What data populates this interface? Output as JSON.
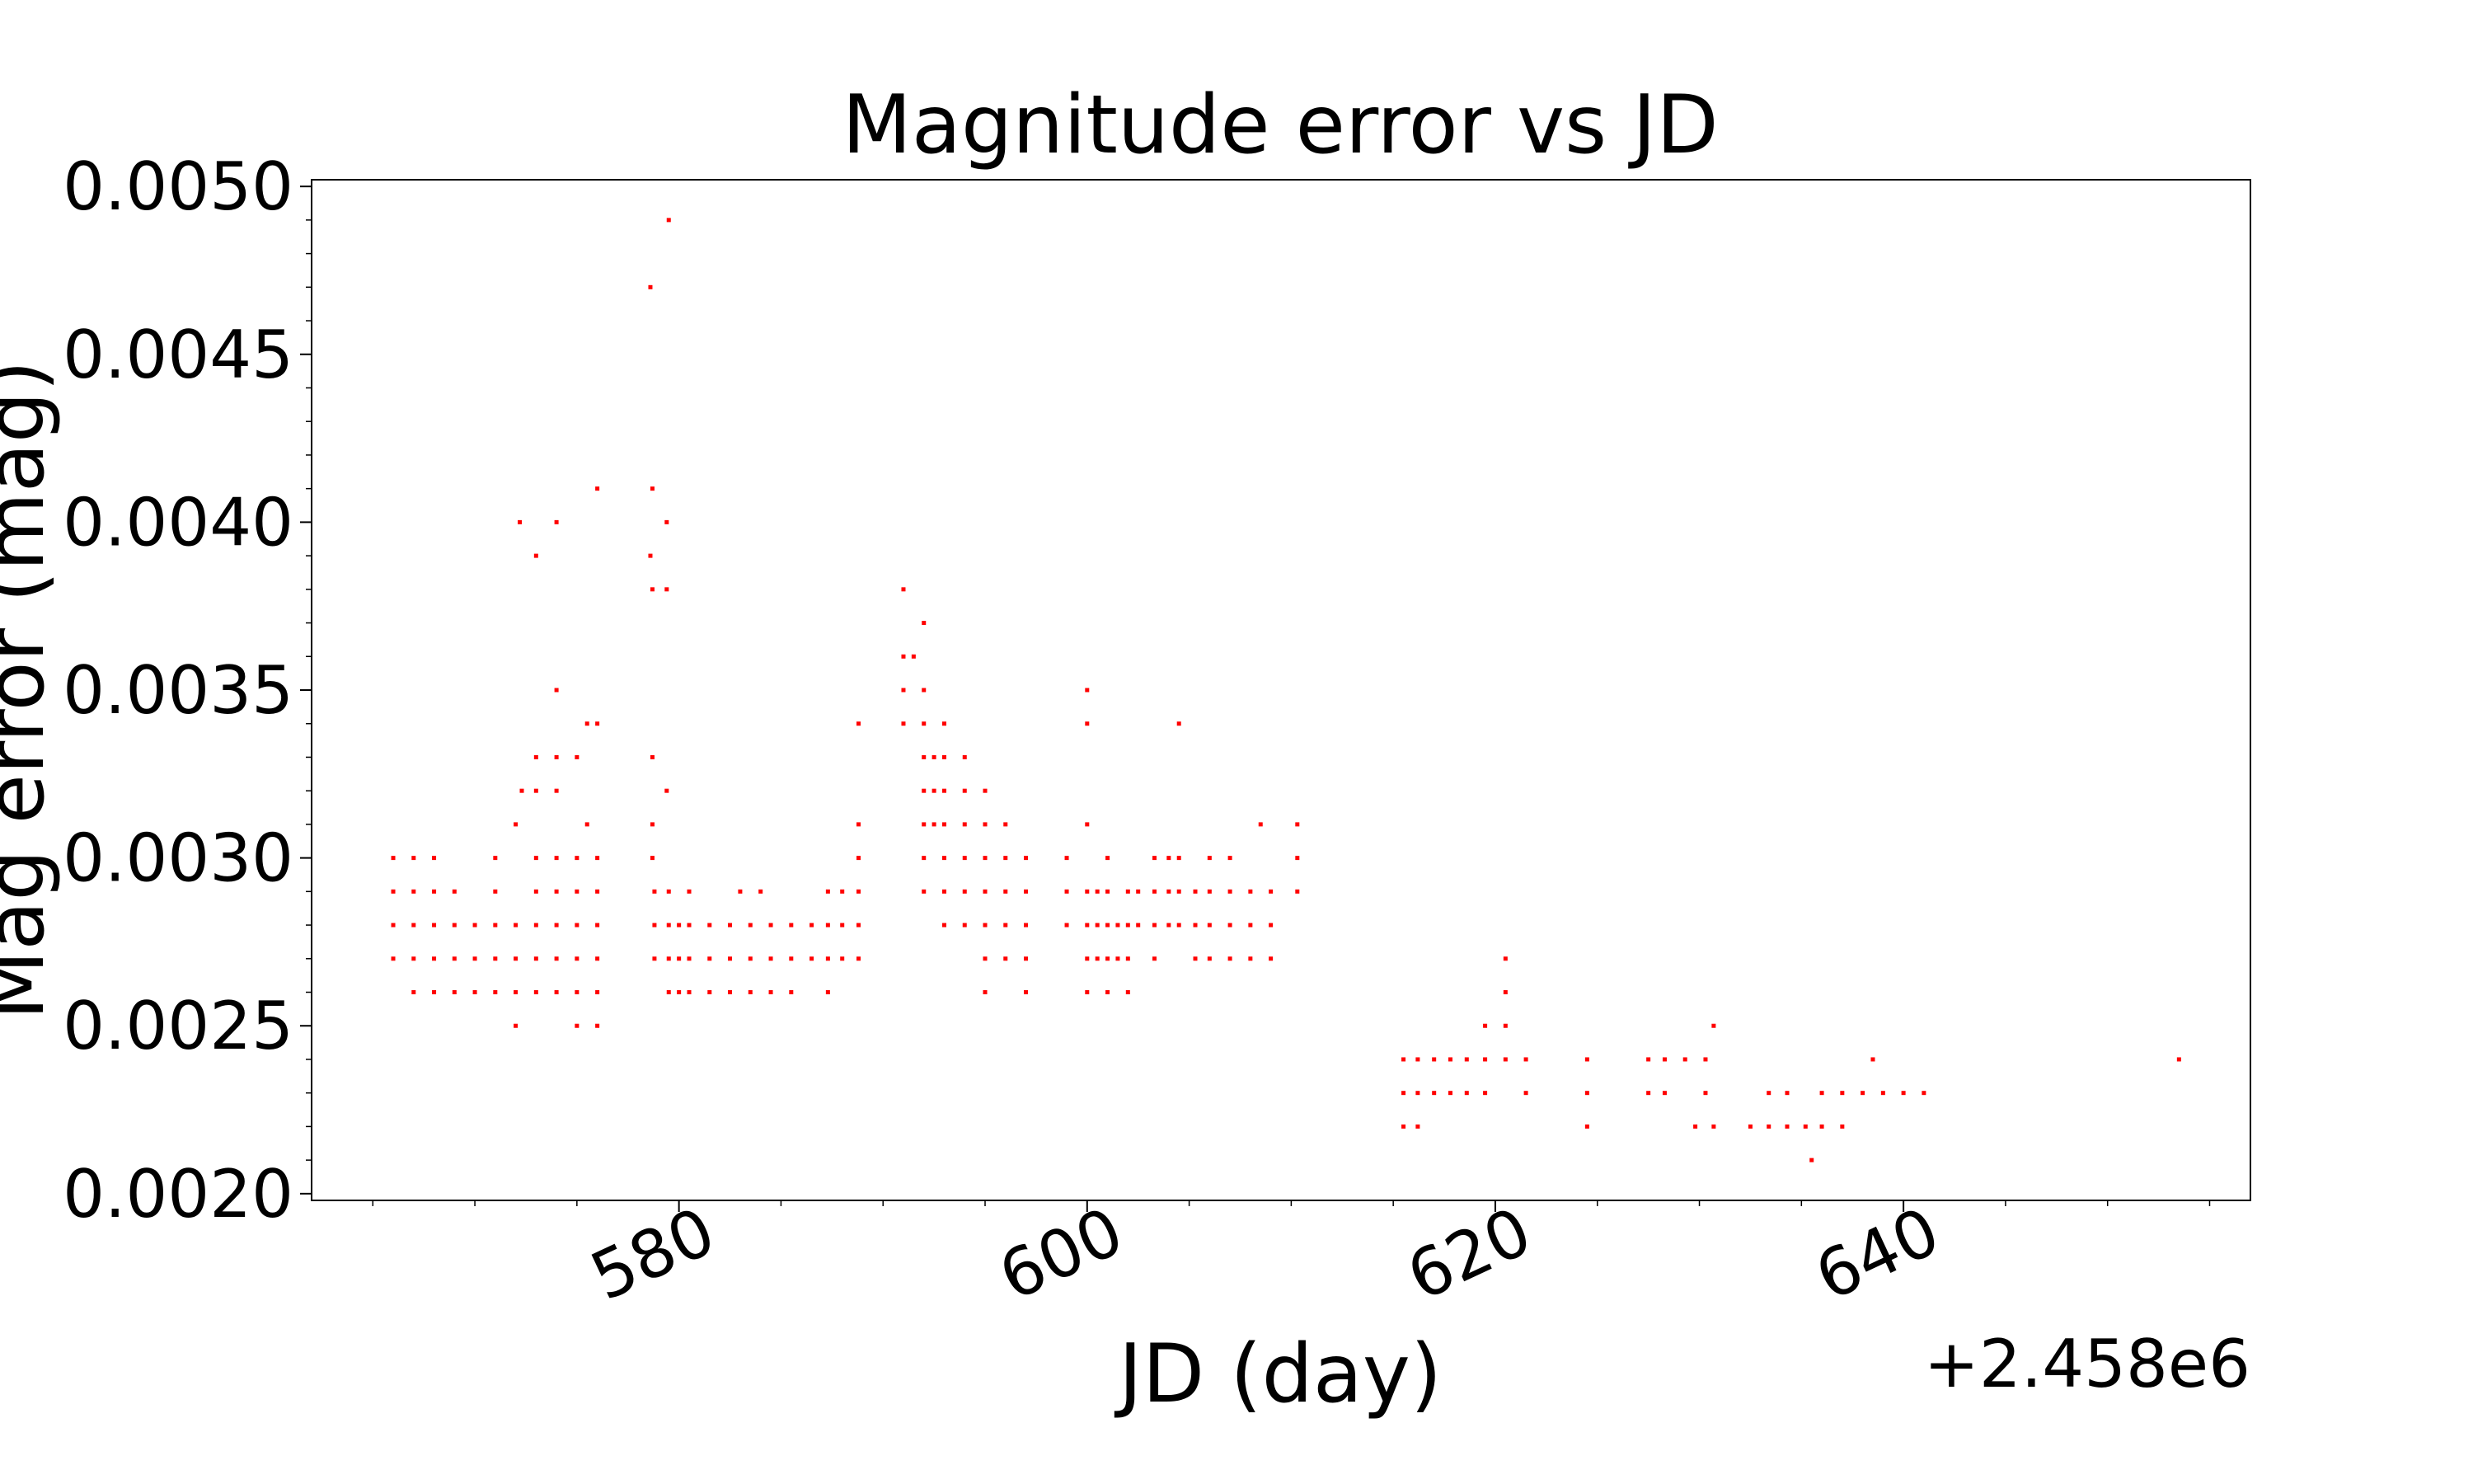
{
  "chart_data": {
    "type": "scatter",
    "title": "Magnitude error vs JD",
    "xlabel": "JD (day)",
    "ylabel": "Mag error (mag)",
    "x_offset_label": "+2.458e6",
    "xlim": [
      2458562,
      2458657
    ],
    "ylim": [
      0.00198,
      0.00502
    ],
    "x_ticks": [
      2458580,
      2458600,
      2458620,
      2458640
    ],
    "x_tick_labels": [
      "580",
      "600",
      "620",
      "640"
    ],
    "y_ticks": [
      0.002,
      0.0025,
      0.003,
      0.0035,
      0.004,
      0.0045,
      0.005
    ],
    "y_tick_labels": [
      "0.0020",
      "0.0025",
      "0.0030",
      "0.0035",
      "0.0040",
      "0.0045",
      "0.0050"
    ],
    "grid": false,
    "marker_color": "#ff0000",
    "series": [
      {
        "points": [
          [
            2458566.0,
            0.003
          ],
          [
            2458566.0,
            0.0029
          ],
          [
            2458566.0,
            0.0028
          ],
          [
            2458566.0,
            0.0027
          ],
          [
            2458567.0,
            0.003
          ],
          [
            2458567.0,
            0.0029
          ],
          [
            2458567.0,
            0.0028
          ],
          [
            2458567.0,
            0.0027
          ],
          [
            2458567.0,
            0.0026
          ],
          [
            2458568.0,
            0.003
          ],
          [
            2458568.0,
            0.0029
          ],
          [
            2458568.0,
            0.0028
          ],
          [
            2458568.0,
            0.0027
          ],
          [
            2458568.0,
            0.0026
          ],
          [
            2458569.0,
            0.0029
          ],
          [
            2458569.0,
            0.0028
          ],
          [
            2458569.0,
            0.0027
          ],
          [
            2458569.0,
            0.0026
          ],
          [
            2458570.0,
            0.0028
          ],
          [
            2458570.0,
            0.0027
          ],
          [
            2458570.0,
            0.0026
          ],
          [
            2458571.0,
            0.003
          ],
          [
            2458571.0,
            0.0029
          ],
          [
            2458571.0,
            0.0028
          ],
          [
            2458571.0,
            0.0027
          ],
          [
            2458571.0,
            0.0026
          ],
          [
            2458572.0,
            0.0031
          ],
          [
            2458572.0,
            0.0028
          ],
          [
            2458572.0,
            0.0027
          ],
          [
            2458572.0,
            0.0026
          ],
          [
            2458572.0,
            0.0025
          ],
          [
            2458572.2,
            0.004
          ],
          [
            2458572.3,
            0.0032
          ],
          [
            2458573.0,
            0.0039
          ],
          [
            2458573.0,
            0.0033
          ],
          [
            2458573.0,
            0.0032
          ],
          [
            2458573.0,
            0.003
          ],
          [
            2458573.0,
            0.0029
          ],
          [
            2458573.0,
            0.0028
          ],
          [
            2458573.0,
            0.0027
          ],
          [
            2458573.0,
            0.0026
          ],
          [
            2458574.0,
            0.004
          ],
          [
            2458574.0,
            0.0035
          ],
          [
            2458574.0,
            0.0033
          ],
          [
            2458574.0,
            0.0032
          ],
          [
            2458574.0,
            0.003
          ],
          [
            2458574.0,
            0.0029
          ],
          [
            2458574.0,
            0.0028
          ],
          [
            2458574.0,
            0.0027
          ],
          [
            2458574.0,
            0.0026
          ],
          [
            2458575.0,
            0.0033
          ],
          [
            2458575.0,
            0.003
          ],
          [
            2458575.0,
            0.0029
          ],
          [
            2458575.0,
            0.0028
          ],
          [
            2458575.0,
            0.0027
          ],
          [
            2458575.0,
            0.0026
          ],
          [
            2458575.0,
            0.0025
          ],
          [
            2458575.5,
            0.0034
          ],
          [
            2458575.5,
            0.0031
          ],
          [
            2458576.0,
            0.0041
          ],
          [
            2458576.0,
            0.0034
          ],
          [
            2458576.0,
            0.003
          ],
          [
            2458576.0,
            0.0029
          ],
          [
            2458576.0,
            0.0028
          ],
          [
            2458576.0,
            0.0027
          ],
          [
            2458576.0,
            0.0026
          ],
          [
            2458576.0,
            0.0025
          ],
          [
            2458578.6,
            0.0047
          ],
          [
            2458578.7,
            0.0041
          ],
          [
            2458578.6,
            0.0039
          ],
          [
            2458578.7,
            0.0038
          ],
          [
            2458578.7,
            0.0033
          ],
          [
            2458578.7,
            0.0031
          ],
          [
            2458578.7,
            0.003
          ],
          [
            2458578.8,
            0.0029
          ],
          [
            2458578.8,
            0.0028
          ],
          [
            2458578.8,
            0.0027
          ],
          [
            2458579.5,
            0.0049
          ],
          [
            2458579.4,
            0.004
          ],
          [
            2458579.4,
            0.0038
          ],
          [
            2458579.4,
            0.0032
          ],
          [
            2458579.5,
            0.0029
          ],
          [
            2458579.5,
            0.0028
          ],
          [
            2458579.5,
            0.0027
          ],
          [
            2458579.5,
            0.0026
          ],
          [
            2458580.0,
            0.0028
          ],
          [
            2458580.0,
            0.0027
          ],
          [
            2458580.0,
            0.0026
          ],
          [
            2458580.5,
            0.0029
          ],
          [
            2458580.5,
            0.0028
          ],
          [
            2458580.5,
            0.0027
          ],
          [
            2458580.5,
            0.0026
          ],
          [
            2458581.5,
            0.0028
          ],
          [
            2458581.5,
            0.0027
          ],
          [
            2458581.5,
            0.0026
          ],
          [
            2458582.5,
            0.0028
          ],
          [
            2458582.5,
            0.0027
          ],
          [
            2458582.5,
            0.0026
          ],
          [
            2458583.0,
            0.0029
          ],
          [
            2458583.5,
            0.0028
          ],
          [
            2458583.5,
            0.0027
          ],
          [
            2458583.5,
            0.0026
          ],
          [
            2458584.0,
            0.0029
          ],
          [
            2458584.5,
            0.0028
          ],
          [
            2458584.5,
            0.0027
          ],
          [
            2458584.5,
            0.0026
          ],
          [
            2458585.5,
            0.0028
          ],
          [
            2458585.5,
            0.0027
          ],
          [
            2458585.5,
            0.0026
          ],
          [
            2458586.5,
            0.0028
          ],
          [
            2458586.5,
            0.0027
          ],
          [
            2458587.3,
            0.0029
          ],
          [
            2458587.3,
            0.0028
          ],
          [
            2458587.3,
            0.0027
          ],
          [
            2458587.3,
            0.0026
          ],
          [
            2458588.0,
            0.0029
          ],
          [
            2458588.0,
            0.0028
          ],
          [
            2458588.0,
            0.0027
          ],
          [
            2458588.8,
            0.0034
          ],
          [
            2458588.8,
            0.0031
          ],
          [
            2458588.8,
            0.003
          ],
          [
            2458588.8,
            0.0029
          ],
          [
            2458588.8,
            0.0028
          ],
          [
            2458588.8,
            0.0027
          ],
          [
            2458591.0,
            0.0038
          ],
          [
            2458591.0,
            0.0036
          ],
          [
            2458591.0,
            0.0035
          ],
          [
            2458591.0,
            0.0034
          ],
          [
            2458591.5,
            0.0036
          ],
          [
            2458592.0,
            0.0037
          ],
          [
            2458592.0,
            0.0035
          ],
          [
            2458592.0,
            0.0034
          ],
          [
            2458592.0,
            0.0033
          ],
          [
            2458592.0,
            0.0032
          ],
          [
            2458592.0,
            0.0031
          ],
          [
            2458592.0,
            0.003
          ],
          [
            2458592.0,
            0.0029
          ],
          [
            2458592.5,
            0.0033
          ],
          [
            2458592.5,
            0.0032
          ],
          [
            2458592.5,
            0.0031
          ],
          [
            2458593.0,
            0.0034
          ],
          [
            2458593.0,
            0.0033
          ],
          [
            2458593.0,
            0.0032
          ],
          [
            2458593.0,
            0.0031
          ],
          [
            2458593.0,
            0.003
          ],
          [
            2458593.0,
            0.0029
          ],
          [
            2458593.0,
            0.0028
          ],
          [
            2458594.0,
            0.0033
          ],
          [
            2458594.0,
            0.0032
          ],
          [
            2458594.0,
            0.0031
          ],
          [
            2458594.0,
            0.003
          ],
          [
            2458594.0,
            0.0029
          ],
          [
            2458594.0,
            0.0028
          ],
          [
            2458595.0,
            0.0032
          ],
          [
            2458595.0,
            0.0031
          ],
          [
            2458595.0,
            0.003
          ],
          [
            2458595.0,
            0.0029
          ],
          [
            2458595.0,
            0.0028
          ],
          [
            2458595.0,
            0.0027
          ],
          [
            2458595.0,
            0.0026
          ],
          [
            2458596.0,
            0.0031
          ],
          [
            2458596.0,
            0.003
          ],
          [
            2458596.0,
            0.0029
          ],
          [
            2458596.0,
            0.0028
          ],
          [
            2458596.0,
            0.0027
          ],
          [
            2458597.0,
            0.003
          ],
          [
            2458597.0,
            0.0029
          ],
          [
            2458597.0,
            0.0028
          ],
          [
            2458597.0,
            0.0027
          ],
          [
            2458597.0,
            0.0026
          ],
          [
            2458599.0,
            0.003
          ],
          [
            2458599.0,
            0.0029
          ],
          [
            2458599.0,
            0.0028
          ],
          [
            2458600.0,
            0.0035
          ],
          [
            2458600.0,
            0.0034
          ],
          [
            2458600.0,
            0.0031
          ],
          [
            2458600.0,
            0.0029
          ],
          [
            2458600.0,
            0.0028
          ],
          [
            2458600.0,
            0.0027
          ],
          [
            2458600.0,
            0.0026
          ],
          [
            2458600.5,
            0.0029
          ],
          [
            2458600.5,
            0.0028
          ],
          [
            2458600.5,
            0.0027
          ],
          [
            2458601.0,
            0.003
          ],
          [
            2458601.0,
            0.0029
          ],
          [
            2458601.0,
            0.0028
          ],
          [
            2458601.0,
            0.0027
          ],
          [
            2458601.0,
            0.0026
          ],
          [
            2458601.5,
            0.0028
          ],
          [
            2458601.5,
            0.0027
          ],
          [
            2458602.0,
            0.0029
          ],
          [
            2458602.0,
            0.0028
          ],
          [
            2458602.0,
            0.0027
          ],
          [
            2458602.0,
            0.0026
          ],
          [
            2458602.5,
            0.0029
          ],
          [
            2458602.5,
            0.0028
          ],
          [
            2458603.3,
            0.003
          ],
          [
            2458603.3,
            0.0029
          ],
          [
            2458603.3,
            0.0028
          ],
          [
            2458603.3,
            0.0027
          ],
          [
            2458604.0,
            0.003
          ],
          [
            2458604.0,
            0.0029
          ],
          [
            2458604.0,
            0.0028
          ],
          [
            2458604.5,
            0.0034
          ],
          [
            2458604.5,
            0.003
          ],
          [
            2458604.5,
            0.0029
          ],
          [
            2458604.5,
            0.0028
          ],
          [
            2458605.3,
            0.0029
          ],
          [
            2458605.3,
            0.0028
          ],
          [
            2458605.3,
            0.0027
          ],
          [
            2458606.0,
            0.003
          ],
          [
            2458606.0,
            0.0029
          ],
          [
            2458606.0,
            0.0028
          ],
          [
            2458606.0,
            0.0027
          ],
          [
            2458607.0,
            0.003
          ],
          [
            2458607.0,
            0.0029
          ],
          [
            2458607.0,
            0.0028
          ],
          [
            2458607.0,
            0.0027
          ],
          [
            2458608.0,
            0.0029
          ],
          [
            2458608.0,
            0.0028
          ],
          [
            2458608.0,
            0.0027
          ],
          [
            2458608.5,
            0.0031
          ],
          [
            2458609.0,
            0.0029
          ],
          [
            2458609.0,
            0.0028
          ],
          [
            2458609.0,
            0.0027
          ],
          [
            2458610.3,
            0.0031
          ],
          [
            2458610.3,
            0.003
          ],
          [
            2458610.3,
            0.0029
          ],
          [
            2458615.5,
            0.0024
          ],
          [
            2458615.5,
            0.0023
          ],
          [
            2458615.5,
            0.0022
          ],
          [
            2458616.2,
            0.0024
          ],
          [
            2458616.2,
            0.0023
          ],
          [
            2458616.2,
            0.0022
          ],
          [
            2458617.0,
            0.0024
          ],
          [
            2458617.0,
            0.0023
          ],
          [
            2458617.8,
            0.0024
          ],
          [
            2458617.8,
            0.0023
          ],
          [
            2458618.6,
            0.0024
          ],
          [
            2458618.6,
            0.0023
          ],
          [
            2458619.5,
            0.0024
          ],
          [
            2458619.5,
            0.0023
          ],
          [
            2458619.5,
            0.0025
          ],
          [
            2458620.5,
            0.0027
          ],
          [
            2458620.5,
            0.0026
          ],
          [
            2458620.5,
            0.0025
          ],
          [
            2458620.5,
            0.0024
          ],
          [
            2458621.5,
            0.0024
          ],
          [
            2458621.5,
            0.0023
          ],
          [
            2458624.5,
            0.0024
          ],
          [
            2458624.5,
            0.0023
          ],
          [
            2458624.5,
            0.0022
          ],
          [
            2458627.5,
            0.0024
          ],
          [
            2458627.5,
            0.0023
          ],
          [
            2458628.3,
            0.0024
          ],
          [
            2458628.3,
            0.0023
          ],
          [
            2458629.3,
            0.0024
          ],
          [
            2458629.8,
            0.0022
          ],
          [
            2458630.3,
            0.0024
          ],
          [
            2458630.3,
            0.0023
          ],
          [
            2458630.7,
            0.0025
          ],
          [
            2458630.7,
            0.0022
          ],
          [
            2458632.5,
            0.0022
          ],
          [
            2458633.4,
            0.0023
          ],
          [
            2458633.4,
            0.0022
          ],
          [
            2458634.3,
            0.0023
          ],
          [
            2458634.3,
            0.0022
          ],
          [
            2458635.2,
            0.0022
          ],
          [
            2458635.5,
            0.0021
          ],
          [
            2458636.0,
            0.0023
          ],
          [
            2458636.0,
            0.0022
          ],
          [
            2458637.0,
            0.0023
          ],
          [
            2458637.0,
            0.0022
          ],
          [
            2458638.0,
            0.0023
          ],
          [
            2458638.5,
            0.0024
          ],
          [
            2458639.0,
            0.0023
          ],
          [
            2458640.0,
            0.0023
          ],
          [
            2458641.0,
            0.0023
          ],
          [
            2458653.5,
            0.0024
          ]
        ]
      }
    ]
  }
}
